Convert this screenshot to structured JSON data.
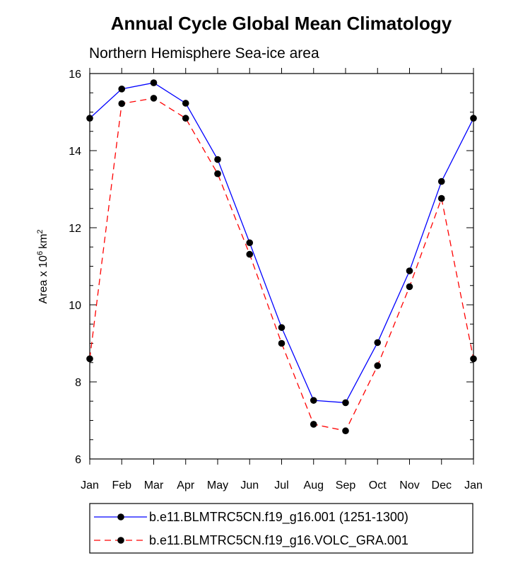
{
  "chart_data": {
    "type": "line",
    "title": "Annual Cycle Global Mean Climatology",
    "subtitle": "Northern Hemisphere Sea-ice area",
    "ylabel": "Area x 10",
    "ylabel_sup": "6",
    "ylabel_unit": "km",
    "ylabel_unit_sup": "2",
    "ylim": [
      6,
      16
    ],
    "yticks": [
      "6",
      "8",
      "10",
      "12",
      "14",
      "16"
    ],
    "categories": [
      "Jan",
      "Feb",
      "Mar",
      "Apr",
      "May",
      "Jun",
      "Jul",
      "Aug",
      "Sep",
      "Oct",
      "Nov",
      "Dec",
      "Jan"
    ],
    "series": [
      {
        "name": "b.e11.BLMTRC5CN.f19_g16.001 (1251-1300)",
        "color": "#0000ff",
        "dash": "solid",
        "values": [
          14.84,
          15.6,
          15.76,
          15.23,
          13.77,
          11.61,
          9.41,
          7.52,
          7.46,
          9.02,
          10.88,
          13.2,
          14.84
        ]
      },
      {
        "name": "b.e11.BLMTRC5CN.f19_g16.VOLC_GRA.001",
        "color": "#ff0000",
        "dash": "dashed",
        "values": [
          8.6,
          15.22,
          15.36,
          14.84,
          13.4,
          11.31,
          9.0,
          6.9,
          6.73,
          8.42,
          10.47,
          12.76,
          8.6
        ]
      }
    ]
  }
}
